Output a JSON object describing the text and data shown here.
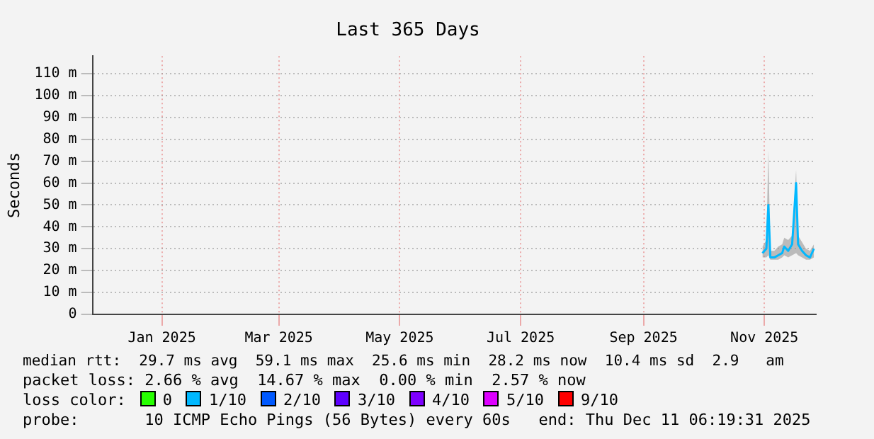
{
  "chart_data": {
    "type": "line",
    "title": "Last 365 Days",
    "ylabel": "Seconds",
    "x": [
      "2025-11-14",
      "2025-11-16",
      "2025-11-17",
      "2025-11-18",
      "2025-11-20",
      "2025-11-22",
      "2025-11-24",
      "2025-11-25",
      "2025-11-27",
      "2025-11-29",
      "2025-12-01",
      "2025-12-02",
      "2025-12-04",
      "2025-12-06",
      "2025-12-08",
      "2025-12-10"
    ],
    "series": [
      {
        "color": "#00b8ff",
        "values": [
          28,
          30,
          50,
          26,
          26,
          27,
          28,
          31,
          29,
          32,
          60,
          32,
          29,
          27,
          26,
          30
        ],
        "lower": [
          26,
          26,
          27,
          25,
          25,
          25,
          26,
          27,
          26,
          27,
          28,
          27,
          26,
          25,
          25,
          26
        ],
        "upper": [
          31,
          34,
          75,
          29,
          29,
          31,
          32,
          35,
          34,
          36,
          66,
          36,
          33,
          30,
          29,
          32
        ]
      }
    ],
    "xlim": [
      "2024-12-11",
      "2025-12-11"
    ],
    "xticks": [
      {
        "value": "2025-01-15",
        "label": "Jan 2025"
      },
      {
        "value": "2025-03-15",
        "label": "Mar 2025"
      },
      {
        "value": "2025-05-15",
        "label": "May 2025"
      },
      {
        "value": "2025-07-15",
        "label": "Jul 2025"
      },
      {
        "value": "2025-09-15",
        "label": "Sep 2025"
      },
      {
        "value": "2025-11-15",
        "label": "Nov 2025"
      }
    ],
    "ylim": [
      0,
      118
    ],
    "yticks": [
      0,
      {
        "value": 10,
        "label": "10 m"
      },
      {
        "value": 20,
        "label": "20 m"
      },
      {
        "value": 30,
        "label": "30 m"
      },
      {
        "value": 40,
        "label": "40 m"
      },
      {
        "value": 50,
        "label": "50 m"
      },
      {
        "value": 60,
        "label": "60 m"
      },
      {
        "value": 70,
        "label": "70 m"
      },
      {
        "value": 80,
        "label": "80 m"
      },
      {
        "value": 90,
        "label": "90 m"
      },
      {
        "value": 100,
        "label": "100 m"
      },
      {
        "value": 110,
        "label": "110 m"
      }
    ],
    "grid": true,
    "legend": false,
    "marker": "none",
    "line_style": "solid",
    "annotations": [
      "median rtt:  29.7 ms avg  59.1 ms max  25.6 ms min  28.2 ms now  10.4 ms sd  2.9   am",
      "packet loss: 2.66 % avg  14.67 % max  0.00 % min  2.57 % now",
      "loss color:",
      "0",
      "1/10",
      "2/10",
      "3/10",
      "4/10",
      "5/10",
      "9/10",
      "probe:       10 ICMP Echo Pings (56 Bytes) every 60s   end: Thu Dec 11 06:19:31 2025"
    ]
  }
}
